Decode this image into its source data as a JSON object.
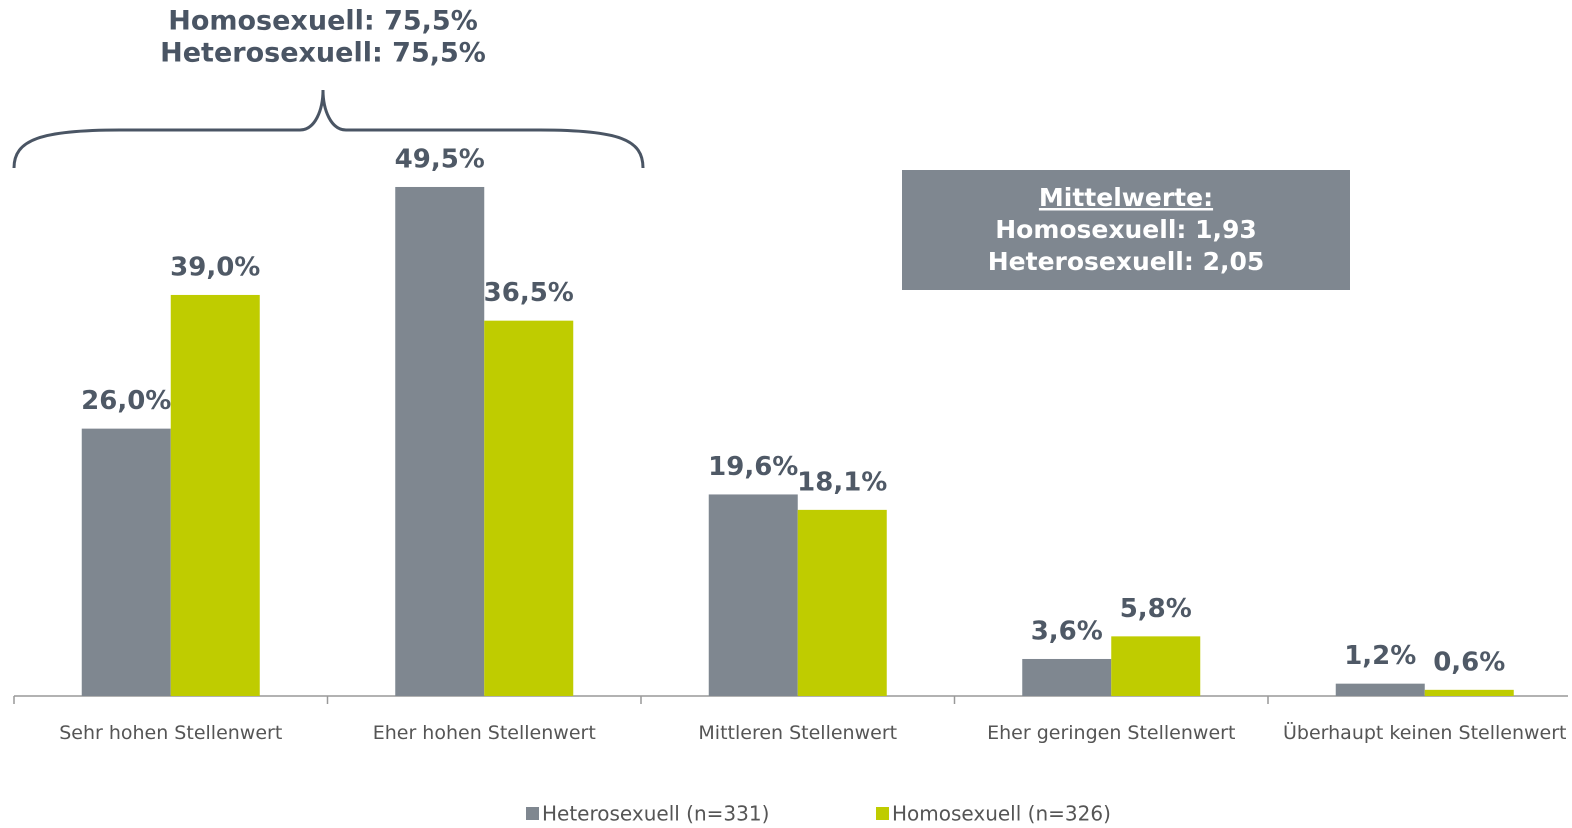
{
  "chart_data": {
    "type": "bar",
    "categories": [
      "Sehr hohen Stellenwert",
      "Eher hohen Stellenwert",
      "Mittleren Stellenwert",
      "Eher geringen Stellenwert",
      "Überhaupt keinen Stellenwert"
    ],
    "series": [
      {
        "name": "Heterosexuell (n=331)",
        "color": "#7f8790",
        "values": [
          26.0,
          49.5,
          19.6,
          3.6,
          1.2
        ],
        "value_labels": [
          "26,0%",
          "49,5%",
          "19,6%",
          "3,6%",
          "1,2%"
        ]
      },
      {
        "name": "Homosexuell (n=326)",
        "color": "#bfcc00",
        "values": [
          39.0,
          36.5,
          18.1,
          5.8,
          0.6
        ],
        "value_labels": [
          "39,0%",
          "36,5%",
          "18,1%",
          "5,8%",
          "0,6%"
        ]
      }
    ],
    "ylim": [
      0,
      60
    ],
    "annotations": {
      "brace": [
        "Homosexuell: 75,5%",
        "Heterosexuell: 75,5%"
      ],
      "box": [
        "Mittelwerte:",
        "Homosexuell: 1,93",
        "Heterosexuell: 2,05"
      ]
    }
  }
}
